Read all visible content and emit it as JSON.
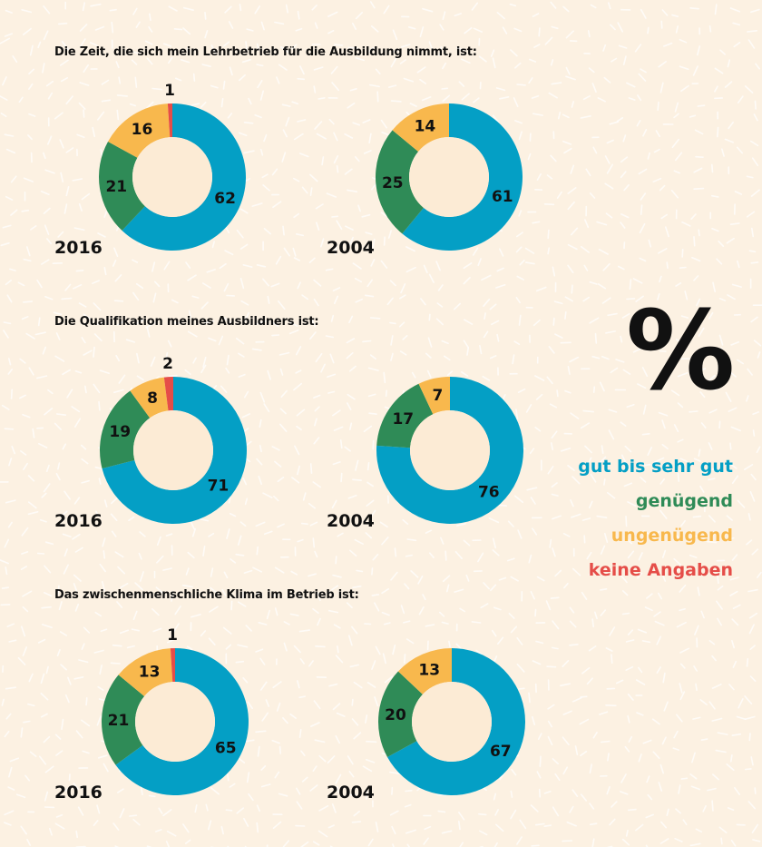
{
  "colors": {
    "gut_bis_sehr_gut": "#049fc5",
    "genuegend": "#2f8b57",
    "ungenuegend": "#f8b84d",
    "keine_angaben": "#e54d48",
    "background": "#fcf1e2",
    "hole": "#fcebd5"
  },
  "legend": {
    "symbol": "%",
    "items": [
      {
        "key": "gut_bis_sehr_gut",
        "label": "gut bis sehr gut"
      },
      {
        "key": "genuegend",
        "label": "genügend"
      },
      {
        "key": "ungenuegend",
        "label": "ungenügend"
      },
      {
        "key": "keine_angaben",
        "label": "keine Angaben"
      }
    ]
  },
  "chart_data": [
    {
      "type": "pie",
      "title": "Die Zeit, die sich mein Lehrbetrieb für die Ausbildung nimmt, ist:",
      "unit": "%",
      "charts": [
        {
          "year": "2016",
          "slices": [
            {
              "name": "gut bis sehr gut",
              "key": "gut_bis_sehr_gut",
              "value": 62
            },
            {
              "name": "genügend",
              "key": "genuegend",
              "value": 21
            },
            {
              "name": "ungenügend",
              "key": "ungenuegend",
              "value": 16
            },
            {
              "name": "keine Angaben",
              "key": "keine_angaben",
              "value": 1
            }
          ]
        },
        {
          "year": "2004",
          "slices": [
            {
              "name": "gut bis sehr gut",
              "key": "gut_bis_sehr_gut",
              "value": 61
            },
            {
              "name": "genügend",
              "key": "genuegend",
              "value": 25
            },
            {
              "name": "ungenügend",
              "key": "ungenuegend",
              "value": 14
            }
          ]
        }
      ]
    },
    {
      "type": "pie",
      "title": "Die Qualifikation meines Ausbildners ist:",
      "unit": "%",
      "charts": [
        {
          "year": "2016",
          "slices": [
            {
              "name": "gut bis sehr gut",
              "key": "gut_bis_sehr_gut",
              "value": 71
            },
            {
              "name": "genügend",
              "key": "genuegend",
              "value": 19
            },
            {
              "name": "ungenügend",
              "key": "ungenuegend",
              "value": 8
            },
            {
              "name": "keine Angaben",
              "key": "keine_angaben",
              "value": 2
            }
          ]
        },
        {
          "year": "2004",
          "slices": [
            {
              "name": "gut bis sehr gut",
              "key": "gut_bis_sehr_gut",
              "value": 76
            },
            {
              "name": "genügend",
              "key": "genuegend",
              "value": 17
            },
            {
              "name": "ungenügend",
              "key": "ungenuegend",
              "value": 7
            }
          ]
        }
      ]
    },
    {
      "type": "pie",
      "title": "Das zwischenmenschliche Klima im Betrieb ist:",
      "unit": "%",
      "charts": [
        {
          "year": "2016",
          "slices": [
            {
              "name": "gut bis sehr gut",
              "key": "gut_bis_sehr_gut",
              "value": 65
            },
            {
              "name": "genügend",
              "key": "genuegend",
              "value": 21
            },
            {
              "name": "ungenügend",
              "key": "ungenuegend",
              "value": 13
            },
            {
              "name": "keine Angaben",
              "key": "keine_angaben",
              "value": 1
            }
          ]
        },
        {
          "year": "2004",
          "slices": [
            {
              "name": "gut bis sehr gut",
              "key": "gut_bis_sehr_gut",
              "value": 67
            },
            {
              "name": "genügend",
              "key": "genuegend",
              "value": 20
            },
            {
              "name": "ungenügend",
              "key": "ungenuegend",
              "value": 13
            }
          ]
        }
      ]
    }
  ]
}
